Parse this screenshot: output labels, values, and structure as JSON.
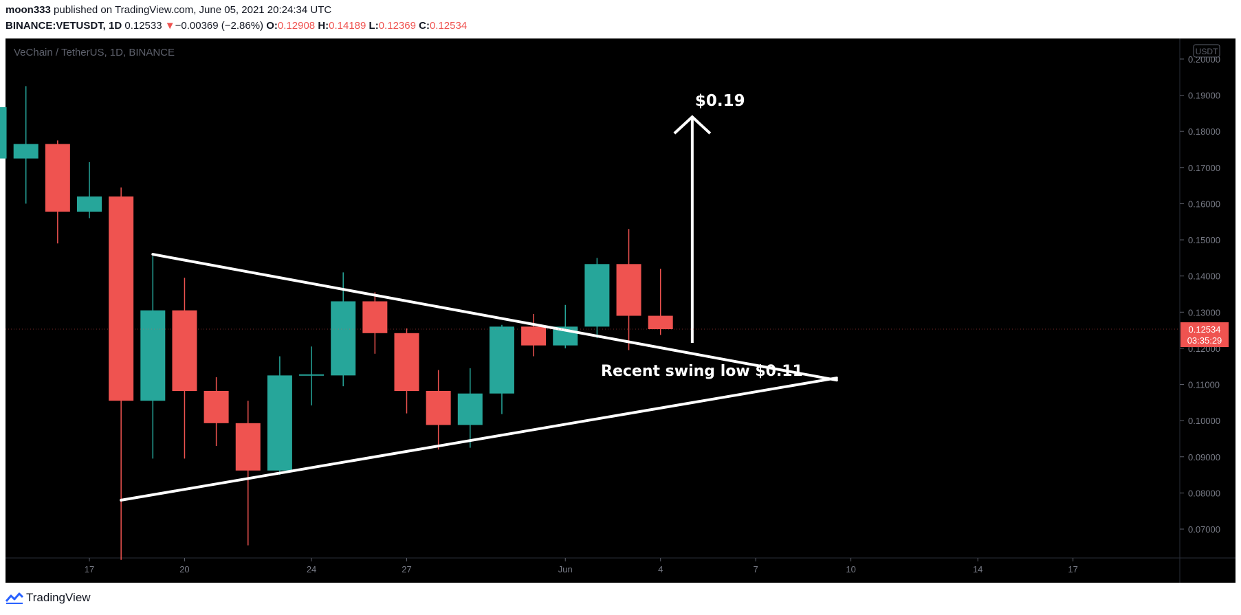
{
  "header": {
    "author": "moon333",
    "published_text": "published on TradingView.com, June 05, 2021 20:24:34 UTC",
    "symbol": "BINANCE:VETUSDT, 1D",
    "last": "0.12533",
    "change_arrow": "▼",
    "change": "−0.00369 (−2.86%)",
    "o_label": "O:",
    "o": "0.12908",
    "h_label": "H:",
    "h": "0.14189",
    "l_label": "L:",
    "l": "0.12369",
    "c_label": "C:",
    "c": "0.12534"
  },
  "chart_title": "VeChain / TetherUS, 1D, BINANCE",
  "currency_badge": "USDT",
  "last_price_label": "0.12534",
  "countdown_label": "03:35:29",
  "footer": {
    "brand": "TradingView",
    "logo_icon": "tradingview-logo-icon"
  },
  "colors": {
    "up": "#26a69a",
    "down": "#ef5350",
    "background": "#000000",
    "annotation": "#ffffff"
  },
  "chart_data": {
    "type": "candlestick",
    "title": "VeChain / TetherUS, 1D, BINANCE",
    "ylim": [
      0.062,
      0.204
    ],
    "y_ticks": [
      "0.07000",
      "0.08000",
      "0.09000",
      "0.10000",
      "0.11000",
      "0.12000",
      "0.13000",
      "0.14000",
      "0.15000",
      "0.16000",
      "0.17000",
      "0.18000",
      "0.19000",
      "0.20000"
    ],
    "x_ticks": [
      {
        "day": 17,
        "label": "17"
      },
      {
        "day": 20,
        "label": "20"
      },
      {
        "day": 24,
        "label": "24"
      },
      {
        "day": 27,
        "label": "27"
      },
      {
        "day": 32,
        "label": "Jun"
      },
      {
        "day": 35,
        "label": "4"
      },
      {
        "day": 38,
        "label": "7"
      },
      {
        "day": 41,
        "label": "10"
      },
      {
        "day": 45,
        "label": "14"
      },
      {
        "day": 48,
        "label": "17"
      }
    ],
    "x_axis_note": "day = day of May 2021 (32 = June 1)",
    "candles": [
      {
        "day": 14,
        "o": 0.1725,
        "h": 0.1883,
        "l": 0.1695,
        "c": 0.1867
      },
      {
        "day": 15,
        "o": 0.1725,
        "h": 0.1925,
        "l": 0.16,
        "c": 0.1765
      },
      {
        "day": 16,
        "o": 0.1765,
        "h": 0.1775,
        "l": 0.149,
        "c": 0.1578
      },
      {
        "day": 17,
        "o": 0.1578,
        "h": 0.1715,
        "l": 0.156,
        "c": 0.162
      },
      {
        "day": 18,
        "o": 0.162,
        "h": 0.1645,
        "l": 0.0615,
        "c": 0.1055
      },
      {
        "day": 19,
        "o": 0.1055,
        "h": 0.1455,
        "l": 0.0895,
        "c": 0.1305
      },
      {
        "day": 20,
        "o": 0.1305,
        "h": 0.1395,
        "l": 0.0895,
        "c": 0.1082
      },
      {
        "day": 21,
        "o": 0.1082,
        "h": 0.112,
        "l": 0.093,
        "c": 0.0993
      },
      {
        "day": 22,
        "o": 0.0993,
        "h": 0.1055,
        "l": 0.0655,
        "c": 0.0862
      },
      {
        "day": 23,
        "o": 0.0862,
        "h": 0.1178,
        "l": 0.085,
        "c": 0.1125
      },
      {
        "day": 24,
        "o": 0.1125,
        "h": 0.1205,
        "l": 0.1042,
        "c": 0.1128
      },
      {
        "day": 25,
        "o": 0.1125,
        "h": 0.141,
        "l": 0.1095,
        "c": 0.133
      },
      {
        "day": 26,
        "o": 0.133,
        "h": 0.1355,
        "l": 0.1185,
        "c": 0.1242
      },
      {
        "day": 27,
        "o": 0.1242,
        "h": 0.1255,
        "l": 0.102,
        "c": 0.1082
      },
      {
        "day": 28,
        "o": 0.1082,
        "h": 0.114,
        "l": 0.092,
        "c": 0.0988
      },
      {
        "day": 29,
        "o": 0.0988,
        "h": 0.1145,
        "l": 0.0925,
        "c": 0.1075
      },
      {
        "day": 30,
        "o": 0.1075,
        "h": 0.1265,
        "l": 0.1018,
        "c": 0.126
      },
      {
        "day": 31,
        "o": 0.126,
        "h": 0.1295,
        "l": 0.1178,
        "c": 0.1208
      },
      {
        "day": 32,
        "o": 0.1208,
        "h": 0.132,
        "l": 0.12,
        "c": 0.126
      },
      {
        "day": 33,
        "o": 0.126,
        "h": 0.145,
        "l": 0.1228,
        "c": 0.1433
      },
      {
        "day": 34,
        "o": 0.1433,
        "h": 0.153,
        "l": 0.1195,
        "c": 0.129
      },
      {
        "day": 35,
        "o": 0.129,
        "h": 0.142,
        "l": 0.1237,
        "c": 0.1253
      }
    ],
    "annotations": {
      "target_label": "$0.19",
      "swing_label": "Recent swing low $0.11",
      "triangle_upper": [
        {
          "day": 19,
          "price": 0.146
        },
        {
          "day": 40.55,
          "price": 0.1112
        }
      ],
      "triangle_lower": [
        {
          "day": 18,
          "price": 0.078
        },
        {
          "day": 40.55,
          "price": 0.1118
        }
      ],
      "arrow": {
        "day": 36,
        "from": 0.1215,
        "to": 0.184
      }
    }
  }
}
